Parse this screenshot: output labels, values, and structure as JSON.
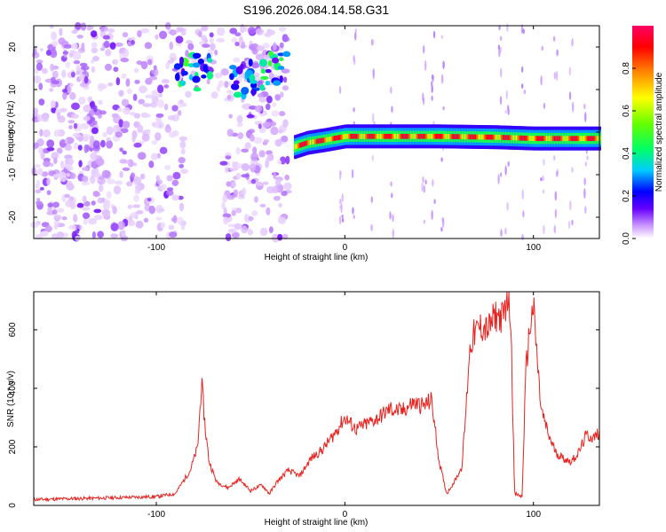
{
  "title": "S196.2026.084.14.58.G31",
  "chart_data": [
    {
      "type": "heatmap",
      "name": "spectrogram",
      "xlabel": "Height of straight line (km)",
      "ylabel": "Frequency (Hz)",
      "xlim": [
        -165,
        135
      ],
      "ylim": [
        -25,
        25
      ],
      "xticks": [
        -100,
        0,
        100
      ],
      "yticks": [
        -20,
        -10,
        0,
        10,
        20
      ],
      "colorbar": {
        "label": "Normalized spectral amplitude",
        "range": [
          0,
          1
        ],
        "ticks": [
          "0.0",
          "0.2",
          "0.4",
          "0.6",
          "0.8"
        ]
      },
      "ridge": [
        {
          "x": -27,
          "y": -3.5
        },
        {
          "x": -20,
          "y": -2.5
        },
        {
          "x": -10,
          "y": -1.8
        },
        {
          "x": 0,
          "y": -1.0
        },
        {
          "x": 20,
          "y": -1.0
        },
        {
          "x": 50,
          "y": -1.0
        },
        {
          "x": 80,
          "y": -1.2
        },
        {
          "x": 100,
          "y": -1.5
        },
        {
          "x": 135,
          "y": -1.5
        }
      ],
      "blobs": [
        {
          "x": -85,
          "y": 15,
          "amp": 0.4
        },
        {
          "x": -75,
          "y": 14,
          "amp": 0.35
        },
        {
          "x": -55,
          "y": 12,
          "amp": 0.3
        },
        {
          "x": -45,
          "y": 13,
          "amp": 0.35
        },
        {
          "x": -35,
          "y": 15,
          "amp": 0.4
        }
      ]
    },
    {
      "type": "line",
      "name": "snr",
      "xlabel": "Height of straight line (km)",
      "ylabel": "SNR (10 * v/v)",
      "xlim": [
        -165,
        135
      ],
      "ylim": [
        0,
        730
      ],
      "xticks": [
        -100,
        0,
        100
      ],
      "yticks": [
        0,
        200,
        400,
        600
      ],
      "color": "#e8231f",
      "x": [
        -165,
        -130,
        -100,
        -90,
        -82,
        -78,
        -76,
        -74,
        -72,
        -68,
        -62,
        -56,
        -50,
        -44,
        -40,
        -36,
        -30,
        -24,
        -18,
        -12,
        -6,
        0,
        6,
        12,
        18,
        24,
        30,
        36,
        42,
        46,
        50,
        54,
        58,
        62,
        64,
        66,
        68,
        72,
        76,
        80,
        84,
        86,
        88,
        90,
        94,
        96,
        98,
        100,
        102,
        104,
        108,
        112,
        116,
        120,
        124,
        128,
        132,
        135
      ],
      "y": [
        20,
        25,
        30,
        40,
        120,
        200,
        420,
        260,
        150,
        80,
        60,
        90,
        50,
        70,
        40,
        80,
        120,
        100,
        160,
        190,
        240,
        300,
        260,
        280,
        300,
        330,
        320,
        350,
        340,
        360,
        150,
        40,
        80,
        130,
        300,
        520,
        580,
        610,
        600,
        650,
        640,
        720,
        650,
        40,
        30,
        460,
        600,
        680,
        500,
        330,
        240,
        180,
        160,
        150,
        180,
        240,
        230,
        250
      ]
    }
  ]
}
